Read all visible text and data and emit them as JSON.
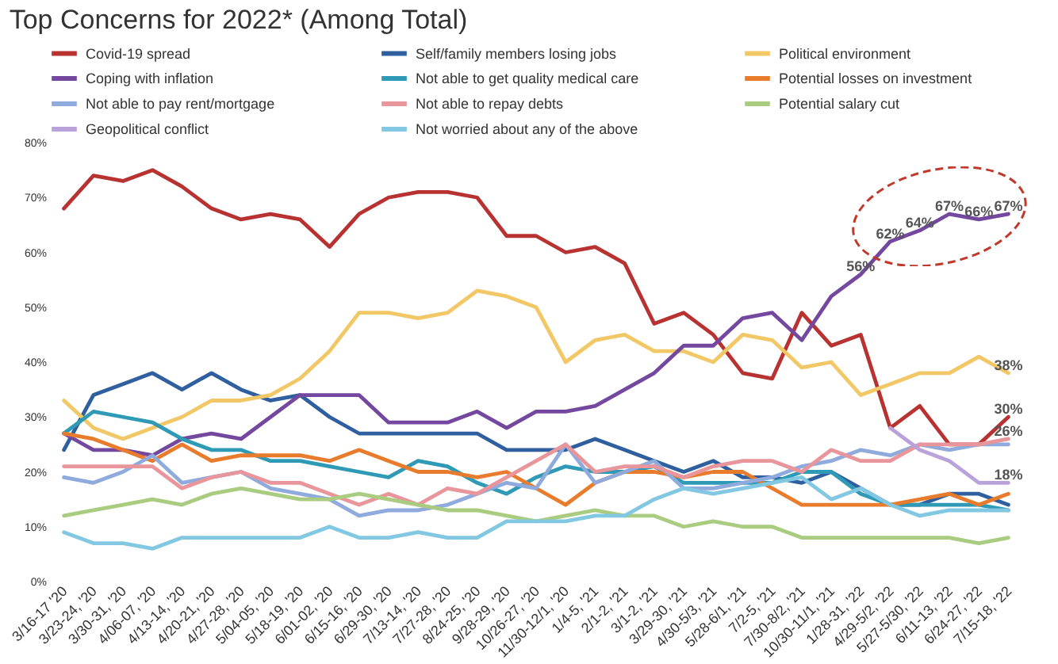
{
  "chart_data": {
    "type": "line",
    "title": "Top Concerns for 2022* (Among Total)",
    "categories": [
      "3/16-17 '20",
      "3/23-24, '20",
      "3/30-31, '20",
      "4/06-07, '20",
      "4/13-14, '20",
      "4/20-21, '20",
      "4/27-28, '20",
      "5/04-05, '20",
      "5/18-19, '20",
      "6/01-02, '20",
      "6/15-16, '20",
      "6/29-30, '20",
      "7/13-14, '20",
      "7/27-28, '20",
      "8/24-25, '20",
      "9/28-29, '20",
      "10/26-27, '20",
      "11/30-12/1, '20",
      "1/4-5, '21",
      "2/1-2, '21",
      "3/1-2, '21",
      "3/29-30, '21",
      "4/30-5/3, '21",
      "5/28-6/1, '21",
      "7/2-5, '21",
      "7/30-8/2, '21",
      "10/30-11/1, '21",
      "1/28-31, '22",
      "4/29-5/2, '22",
      "5/27-5/30, '22",
      "6/11-13, '22",
      "6/24-27, '22",
      "7/15-18, '22"
    ],
    "series": [
      {
        "name": "Covid-19 spread",
        "color": "#b83232",
        "values": [
          68,
          74,
          73,
          75,
          72,
          68,
          66,
          67,
          66,
          61,
          67,
          70,
          71,
          71,
          70,
          63,
          63,
          60,
          61,
          58,
          47,
          49,
          45,
          38,
          37,
          49,
          43,
          45,
          28,
          32,
          25,
          25,
          30
        ],
        "value_labels": [
          null,
          null,
          null,
          null,
          null,
          null,
          null,
          null,
          null,
          null,
          null,
          null,
          null,
          null,
          null,
          null,
          null,
          null,
          null,
          null,
          null,
          null,
          null,
          null,
          null,
          null,
          null,
          null,
          null,
          null,
          null,
          null,
          "30%"
        ]
      },
      {
        "name": "Self/family members losing jobs",
        "color": "#2f5f9e",
        "values": [
          24,
          34,
          36,
          38,
          35,
          38,
          35,
          33,
          34,
          30,
          27,
          27,
          27,
          27,
          27,
          24,
          24,
          24,
          26,
          24,
          22,
          20,
          22,
          19,
          19,
          18,
          20,
          17,
          14,
          14,
          16,
          16,
          14
        ]
      },
      {
        "name": "Political environment",
        "color": "#f2c866",
        "values": [
          33,
          28,
          26,
          28,
          30,
          33,
          33,
          34,
          37,
          42,
          49,
          49,
          48,
          49,
          53,
          52,
          50,
          40,
          44,
          45,
          42,
          42,
          40,
          45,
          44,
          39,
          40,
          34,
          36,
          38,
          38,
          41,
          38
        ],
        "value_labels": [
          null,
          null,
          null,
          null,
          null,
          null,
          null,
          null,
          null,
          null,
          null,
          null,
          null,
          null,
          null,
          null,
          null,
          null,
          null,
          null,
          null,
          null,
          null,
          null,
          null,
          null,
          null,
          null,
          null,
          null,
          null,
          null,
          "38%"
        ]
      },
      {
        "name": "Coping with inflation",
        "color": "#7548a0",
        "values": [
          27,
          24,
          24,
          23,
          26,
          27,
          26,
          30,
          34,
          34,
          34,
          29,
          29,
          29,
          31,
          28,
          31,
          31,
          32,
          35,
          38,
          43,
          43,
          48,
          49,
          44,
          52,
          56,
          62,
          64,
          67,
          66,
          67
        ],
        "value_labels": [
          null,
          null,
          null,
          null,
          null,
          null,
          null,
          null,
          null,
          null,
          null,
          null,
          null,
          null,
          null,
          null,
          null,
          null,
          null,
          null,
          null,
          null,
          null,
          null,
          null,
          null,
          null,
          "56%",
          "62%",
          "64%",
          "67%",
          "66%",
          "67%"
        ]
      },
      {
        "name": "Not able to get quality medical care",
        "color": "#2e9ab5",
        "values": [
          27,
          31,
          30,
          29,
          26,
          24,
          24,
          22,
          22,
          21,
          20,
          19,
          22,
          21,
          18,
          16,
          19,
          21,
          20,
          20,
          21,
          18,
          18,
          18,
          18,
          20,
          20,
          16,
          14,
          14,
          14,
          14,
          13
        ]
      },
      {
        "name": "Potential losses on investment",
        "color": "#e97c2c",
        "values": [
          27,
          26,
          24,
          22,
          25,
          22,
          23,
          23,
          23,
          22,
          24,
          22,
          20,
          20,
          19,
          20,
          17,
          14,
          18,
          20,
          20,
          19,
          20,
          20,
          17,
          14,
          14,
          14,
          14,
          15,
          16,
          14,
          16
        ]
      },
      {
        "name": "Not able to pay rent/mortgage",
        "color": "#8faadc",
        "values": [
          19,
          18,
          20,
          23,
          18,
          19,
          20,
          17,
          16,
          15,
          12,
          13,
          13,
          14,
          16,
          18,
          17,
          25,
          18,
          20,
          22,
          17,
          17,
          18,
          19,
          21,
          22,
          24,
          23,
          25,
          24,
          25,
          25
        ]
      },
      {
        "name": "Not able to repay debts",
        "color": "#e8959b",
        "values": [
          21,
          21,
          21,
          21,
          17,
          19,
          20,
          18,
          18,
          16,
          14,
          16,
          14,
          17,
          16,
          19,
          22,
          25,
          20,
          21,
          21,
          19,
          21,
          22,
          22,
          20,
          24,
          22,
          22,
          25,
          25,
          25,
          26
        ],
        "value_labels": [
          null,
          null,
          null,
          null,
          null,
          null,
          null,
          null,
          null,
          null,
          null,
          null,
          null,
          null,
          null,
          null,
          null,
          null,
          null,
          null,
          null,
          null,
          null,
          null,
          null,
          null,
          null,
          null,
          null,
          null,
          null,
          null,
          "26%"
        ]
      },
      {
        "name": "Potential salary cut",
        "color": "#a9cc80",
        "values": [
          12,
          13,
          14,
          15,
          14,
          16,
          17,
          16,
          15,
          15,
          16,
          15,
          14,
          13,
          13,
          12,
          11,
          12,
          13,
          12,
          12,
          10,
          11,
          10,
          10,
          8,
          8,
          8,
          8,
          8,
          8,
          7,
          8
        ]
      },
      {
        "name": "Geopolitical conflict",
        "color": "#b9a2d9",
        "values": [
          null,
          null,
          null,
          null,
          null,
          null,
          null,
          null,
          null,
          null,
          null,
          null,
          null,
          null,
          null,
          null,
          null,
          null,
          null,
          null,
          null,
          null,
          null,
          null,
          null,
          null,
          null,
          null,
          28,
          24,
          22,
          18,
          18
        ],
        "value_labels": [
          null,
          null,
          null,
          null,
          null,
          null,
          null,
          null,
          null,
          null,
          null,
          null,
          null,
          null,
          null,
          null,
          null,
          null,
          null,
          null,
          null,
          null,
          null,
          null,
          null,
          null,
          null,
          null,
          null,
          null,
          null,
          null,
          "18%"
        ]
      },
      {
        "name": "Not worried about any of the above",
        "color": "#82c8e2",
        "values": [
          9,
          7,
          7,
          6,
          8,
          8,
          8,
          8,
          8,
          10,
          8,
          8,
          9,
          8,
          8,
          11,
          11,
          11,
          12,
          12,
          15,
          17,
          16,
          17,
          18,
          19,
          15,
          17,
          14,
          12,
          13,
          13,
          13
        ]
      }
    ],
    "ylim": [
      0,
      80
    ],
    "yticks": [
      {
        "value": 0,
        "label": "0%"
      },
      {
        "value": 10,
        "label": "10%"
      },
      {
        "value": 20,
        "label": "20%"
      },
      {
        "value": 30,
        "label": "30%"
      },
      {
        "value": 40,
        "label": "40%"
      },
      {
        "value": 50,
        "label": "50%"
      },
      {
        "value": 60,
        "label": "60%"
      },
      {
        "value": 70,
        "label": "70%"
      },
      {
        "value": 80,
        "label": "80%"
      }
    ],
    "grid": false,
    "legend": "top",
    "marker": "none",
    "line_style": "solid"
  }
}
